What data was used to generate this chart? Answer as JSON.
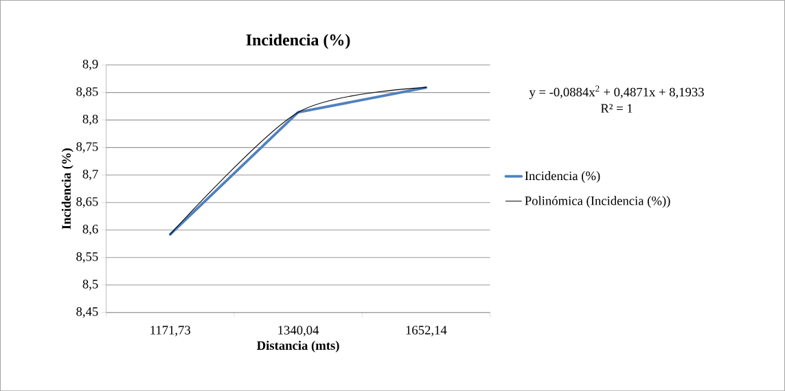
{
  "chart_data": {
    "type": "line",
    "title": "Incidencia (%)",
    "xlabel": "Distancia (mts)",
    "ylabel": "Incidencia (%)",
    "categories": [
      "1171,73",
      "1340,04",
      "1652,14"
    ],
    "series": [
      {
        "name": "Incidencia (%)",
        "color": "#4f81bd",
        "values": [
          8.592,
          8.814,
          8.859
        ]
      },
      {
        "name": "Polinómica (Incidencia (%))",
        "color": "#000000",
        "type": "line",
        "values": [
          8.592,
          8.814,
          8.859
        ]
      }
    ],
    "ylim": [
      8.45,
      8.9
    ],
    "yticks": [
      {
        "value": 8.45,
        "label": "8,45"
      },
      {
        "value": 8.5,
        "label": "8,5"
      },
      {
        "value": 8.55,
        "label": "8,55"
      },
      {
        "value": 8.6,
        "label": "8,6"
      },
      {
        "value": 8.65,
        "label": "8,65"
      },
      {
        "value": 8.7,
        "label": "8,7"
      },
      {
        "value": 8.75,
        "label": "8,75"
      },
      {
        "value": 8.8,
        "label": "8,8"
      },
      {
        "value": 8.85,
        "label": "8,85"
      },
      {
        "value": 8.9,
        "label": "8,9"
      }
    ],
    "grid": "y",
    "legend": "right",
    "marker": "none",
    "line_style": "solid",
    "annotations": [
      "y = -0,0884x$^{2}$ + 0,4871x + 8,1933",
      "R² = 1"
    ]
  }
}
